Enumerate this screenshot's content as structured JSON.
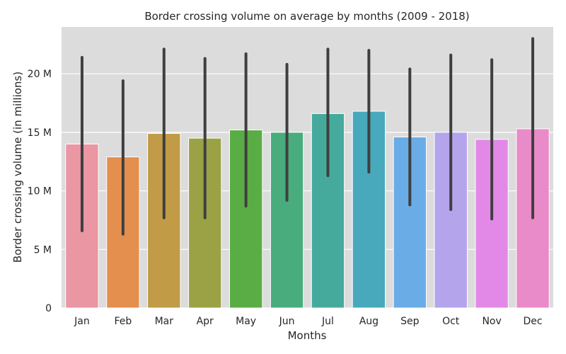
{
  "chart_data": {
    "type": "bar",
    "title": "Border crossing volume on average by months (2009 - 2018)",
    "xlabel": "Months",
    "ylabel": "Border crossing volume (in millions)",
    "ylim": [
      0,
      24
    ],
    "yticks": [
      0,
      5,
      10,
      15,
      20
    ],
    "ytick_labels": [
      "0",
      "5 M",
      "10 M",
      "15 M",
      "20 M"
    ],
    "grid": true,
    "categories": [
      "Jan",
      "Feb",
      "Mar",
      "Apr",
      "May",
      "Jun",
      "Jul",
      "Aug",
      "Sep",
      "Oct",
      "Nov",
      "Dec"
    ],
    "values": [
      14.0,
      12.9,
      14.9,
      14.5,
      15.2,
      15.0,
      16.6,
      16.8,
      14.6,
      15.0,
      14.4,
      15.3
    ],
    "error_low": [
      6.6,
      6.3,
      7.7,
      7.7,
      8.7,
      9.2,
      11.3,
      11.6,
      8.8,
      8.4,
      7.6,
      7.7
    ],
    "error_high": [
      21.4,
      19.4,
      22.1,
      21.3,
      21.7,
      20.8,
      22.1,
      22.0,
      20.4,
      21.6,
      21.2,
      23.0
    ],
    "colors": [
      "#ea96a3",
      "#e58f4f",
      "#c19b46",
      "#9ba246",
      "#5aac45",
      "#48ac7d",
      "#45aa9c",
      "#48a9bc",
      "#6aace6",
      "#b4a4ec",
      "#e289e8",
      "#e98bc8"
    ],
    "background_color": "#dcdcdc",
    "grid_color": "#ffffff",
    "errorbar_color": "#3f3f3f"
  }
}
